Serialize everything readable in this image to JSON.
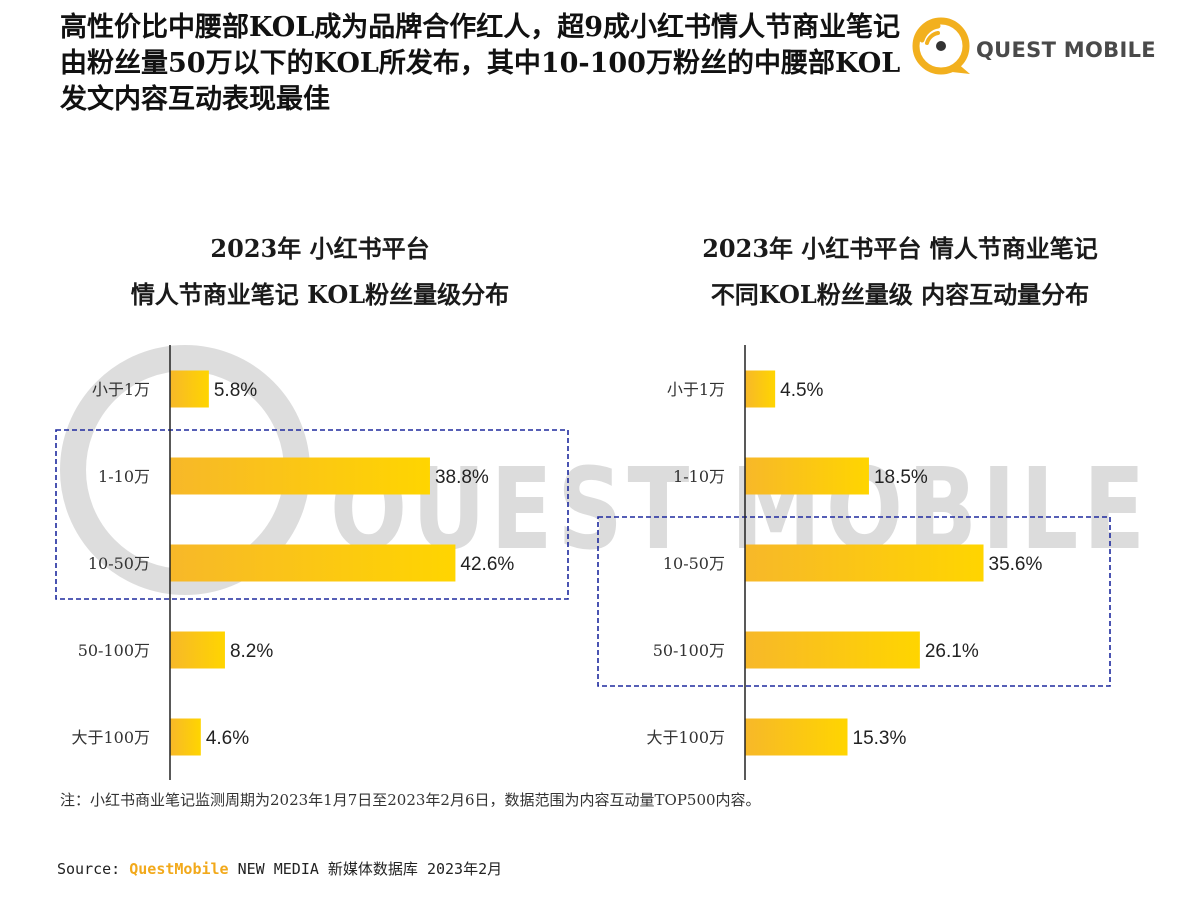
{
  "headline": "高性价比中腰部KOL成为品牌合作红人，超9成小红书情人节商业笔记由粉丝量50万以下的KOL所发布，其中10-100万粉丝的中腰部KOL发文内容互动表现最佳",
  "logo": {
    "text": "QUEST MOBILE",
    "icon": "questmobile-logo-icon",
    "color": "#f2b01e"
  },
  "watermark": {
    "text": "QUEST MOBILE"
  },
  "footnote": "注：小红书商业笔记监测周期为2023年1月7日至2023年2月6日，数据范围为内容互动量TOP500内容。",
  "source": {
    "prefix": "Source: ",
    "brand": "QuestMobile",
    "suffix": " NEW MEDIA 新媒体数据库 2023年2月"
  },
  "colors": {
    "bar_start": "#f7b829",
    "bar_end": "#ffd500",
    "highlight_box": "#1e2a9e"
  },
  "chart_data": [
    {
      "type": "bar",
      "orientation": "horizontal",
      "title_lines": [
        "2023年 小红书平台",
        "情人节商业笔记 KOL粉丝量级分布"
      ],
      "categories": [
        "小于1万",
        "1-10万",
        "10-50万",
        "50-100万",
        "大于100万"
      ],
      "values": [
        5.8,
        38.8,
        42.6,
        8.2,
        4.6
      ],
      "value_labels": [
        "5.8%",
        "38.8%",
        "42.6%",
        "8.2%",
        "4.6%"
      ],
      "unit": "%",
      "highlighted_categories": [
        "1-10万",
        "10-50万"
      ],
      "xlabel": "",
      "ylabel": "",
      "grid": false,
      "legend": "none"
    },
    {
      "type": "bar",
      "orientation": "horizontal",
      "title_lines": [
        "2023年 小红书平台 情人节商业笔记",
        "不同KOL粉丝量级 内容互动量分布"
      ],
      "categories": [
        "小于1万",
        "1-10万",
        "10-50万",
        "50-100万",
        "大于100万"
      ],
      "values": [
        4.5,
        18.5,
        35.6,
        26.1,
        15.3
      ],
      "value_labels": [
        "4.5%",
        "18.5%",
        "35.6%",
        "26.1%",
        "15.3%"
      ],
      "unit": "%",
      "highlighted_categories": [
        "10-50万",
        "50-100万"
      ],
      "xlabel": "",
      "ylabel": "",
      "grid": false,
      "legend": "none"
    }
  ]
}
